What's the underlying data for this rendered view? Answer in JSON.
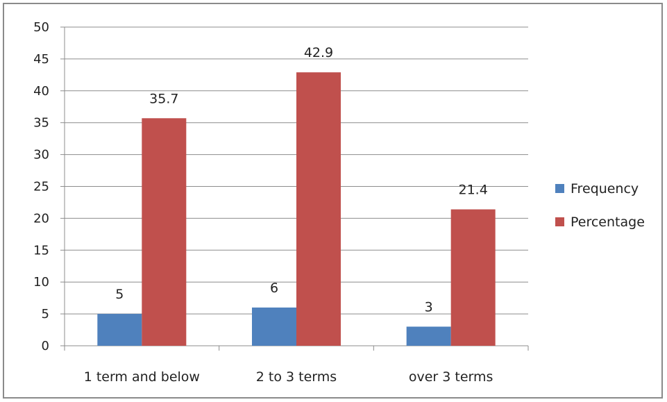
{
  "chart_data": {
    "type": "bar",
    "categories": [
      "1 term and below",
      "2 to 3 terms",
      "over 3 terms"
    ],
    "series": [
      {
        "name": "Frequency",
        "values": [
          5,
          6,
          3
        ],
        "color": "#4f81bd"
      },
      {
        "name": "Percentage",
        "values": [
          35.7,
          42.9,
          21.4
        ],
        "color": "#c0504d"
      }
    ],
    "data_labels": [
      [
        "5",
        "6",
        "3"
      ],
      [
        "35.7",
        "42.9",
        "21.4"
      ]
    ],
    "ylim": [
      0,
      50
    ],
    "yticks": [
      0,
      5,
      10,
      15,
      20,
      25,
      30,
      35,
      40,
      45,
      50
    ],
    "grid": true,
    "legend_position": "right",
    "title": "",
    "xlabel": "",
    "ylabel": ""
  }
}
